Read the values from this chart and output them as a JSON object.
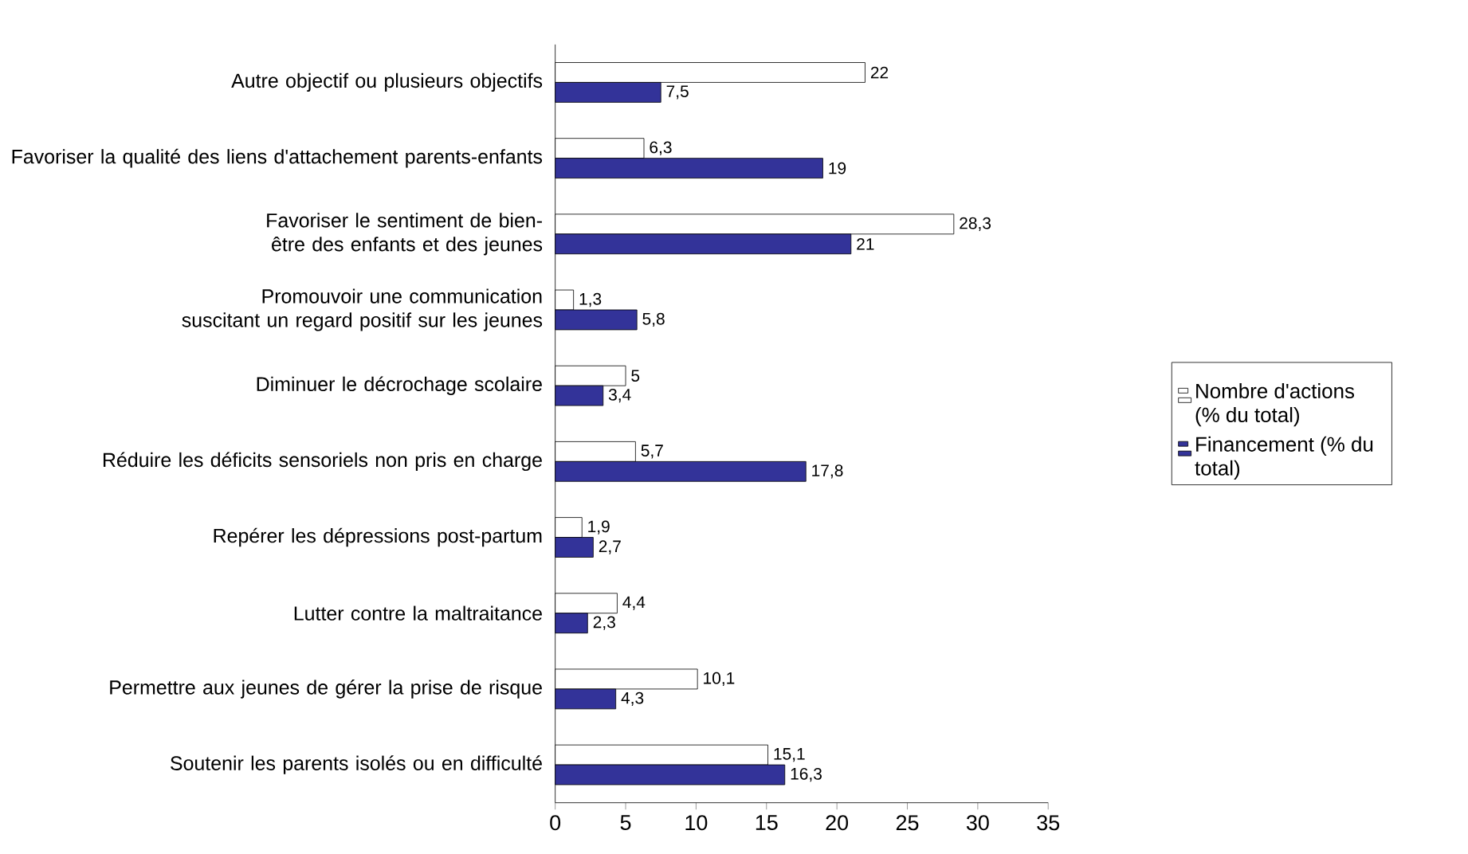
{
  "chart_data": {
    "type": "bar",
    "orientation": "horizontal",
    "categories": [
      "Autre objectif ou plusieurs objectifs",
      "Favoriser la qualité des liens d'attachement parents-enfants",
      "Favoriser le sentiment de bien-être des enfants et des jeunes",
      "Promouvoir une communication suscitant un regard positif sur les jeunes",
      "Diminuer le décrochage scolaire",
      "Réduire les déficits sensoriels non pris en charge",
      "Repérer les dépressions post-partum",
      "Lutter contre la maltraitance",
      "Permettre aux jeunes de gérer la prise de risque",
      "Soutenir les parents isolés ou en difficulté"
    ],
    "series": [
      {
        "name": "Nombre d'actions (% du total)",
        "color": "#ffffff",
        "values": [
          22,
          6.3,
          28.3,
          1.3,
          5,
          5.7,
          1.9,
          4.4,
          10.1,
          15.1
        ],
        "value_labels": [
          "22",
          "6,3",
          "28,3",
          "1,3",
          "5",
          "5,7",
          "1,9",
          "4,4",
          "10,1",
          "15,1"
        ]
      },
      {
        "name": "Financement (% du total)",
        "color": "#333399",
        "values": [
          7.5,
          19,
          21,
          5.8,
          3.4,
          17.8,
          2.7,
          2.3,
          4.3,
          16.3
        ],
        "value_labels": [
          "7,5",
          "19",
          "21",
          "5,8",
          "3,4",
          "17,8",
          "2,7",
          "2,3",
          "4,3",
          "16,3"
        ]
      }
    ],
    "xlim": [
      0,
      35
    ],
    "xticks": [
      0,
      5,
      10,
      15,
      20,
      25,
      30,
      35
    ],
    "grid": false,
    "legend": "right"
  }
}
